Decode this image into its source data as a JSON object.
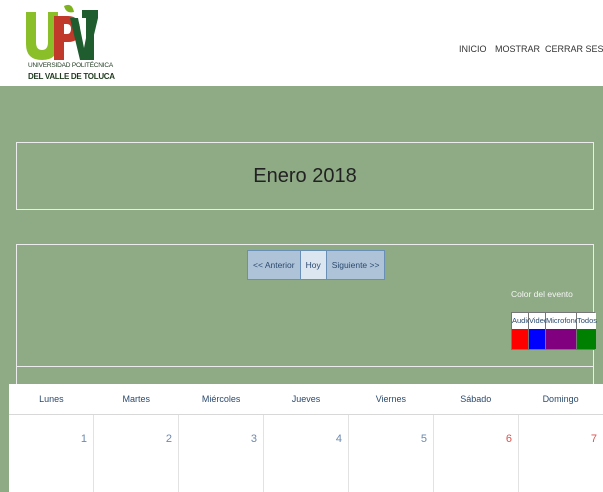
{
  "header": {
    "logo": {
      "mark": "UPVT",
      "line1": "UNIVERSIDAD POLITÉCNICA",
      "line2": "DEL VALLE DE TOLUCA"
    },
    "nav": [
      "INICIO",
      "MOSTRAR",
      "CERRAR SESION"
    ]
  },
  "calendar_header": {
    "month_title": "Enero 2018"
  },
  "navigation": {
    "prev": "<< Anterior",
    "today": "Hoy",
    "next": "Siguiente >>"
  },
  "legend": {
    "title": "Color del evento",
    "items": [
      {
        "label": "Audio",
        "color": "#ff0000"
      },
      {
        "label": "Video",
        "color": "#0000ff"
      },
      {
        "label": "Microfono",
        "color": "#800080"
      },
      {
        "label": "Todos",
        "color": "#008000"
      }
    ]
  },
  "calendar": {
    "day_names": [
      "Lunes",
      "Martes",
      "Miércoles",
      "Jueves",
      "Viernes",
      "Sábado",
      "Domingo"
    ],
    "first_week": [
      "1",
      "2",
      "3",
      "4",
      "5",
      "6",
      "7"
    ]
  },
  "colors": {
    "page_bg": "#8fab85",
    "weekend_text": "#d9534f",
    "weekday_text": "#6b89b0"
  }
}
